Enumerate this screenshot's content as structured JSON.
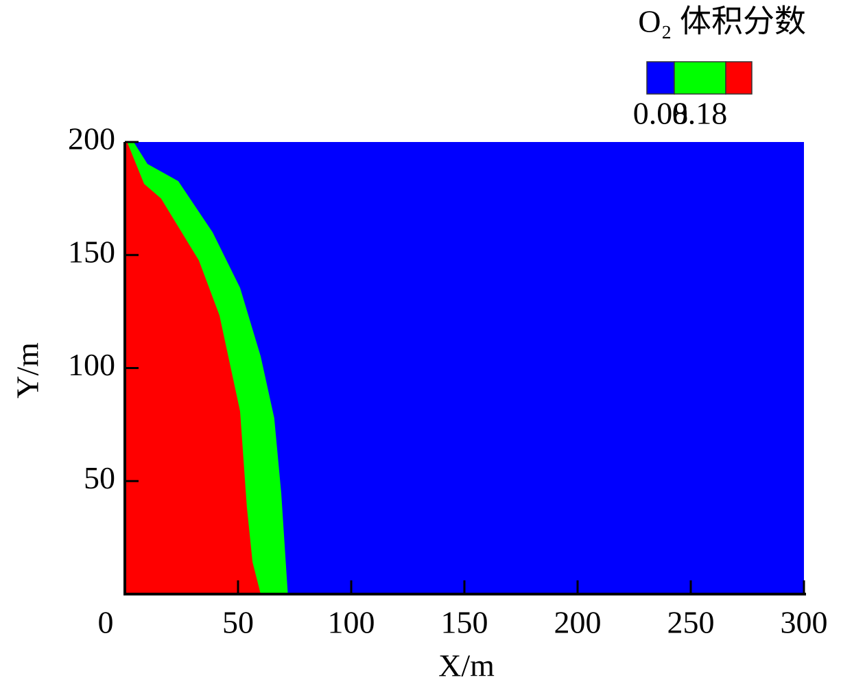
{
  "chart_data": {
    "type": "contour",
    "legend_title": "O₂ 体积分数",
    "x_label": "X/m",
    "y_label": "Y/m",
    "xlim": [
      0,
      300
    ],
    "ylim": [
      0,
      200
    ],
    "xticks": [
      0,
      50,
      100,
      150,
      200,
      250,
      300
    ],
    "yticks": [
      50,
      100,
      150,
      200
    ],
    "levels": [
      0.08,
      0.18
    ],
    "colors": [
      "#0000ff",
      "#00ff00",
      "#ff0000"
    ],
    "contours": [
      {
        "level": 0.08,
        "x": [
          3.9,
          10,
          23.6,
          38.8,
          50.9,
          60,
          66,
          69.1,
          72
        ],
        "y": [
          200,
          190.3,
          182.7,
          160,
          135.5,
          105.2,
          77.9,
          44.5,
          0
        ]
      },
      {
        "level": 0.18,
        "x": [
          1,
          8.5,
          16,
          32.7,
          41.8,
          50.9,
          53.9,
          56.4,
          60
        ],
        "y": [
          200,
          181.5,
          175,
          147.6,
          123.3,
          80.9,
          38.5,
          14.2,
          0
        ]
      }
    ]
  }
}
